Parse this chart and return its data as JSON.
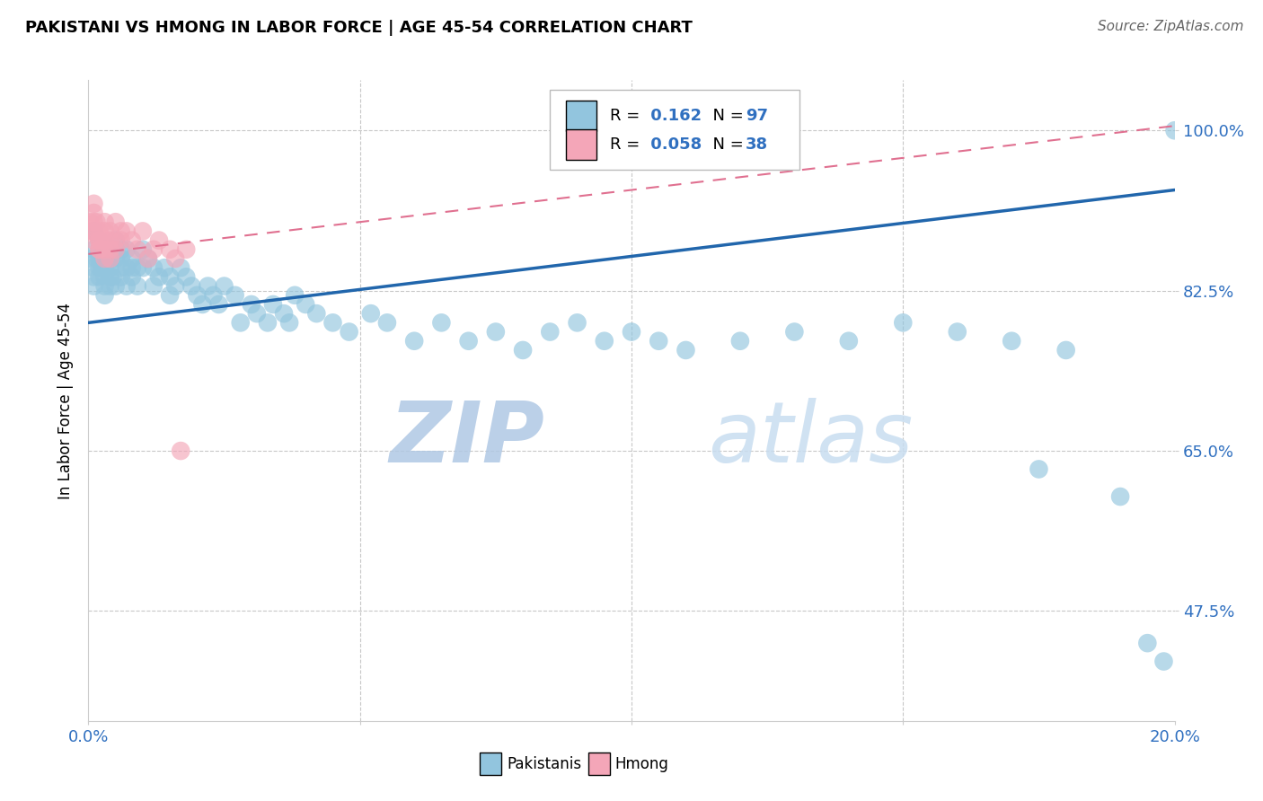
{
  "title": "PAKISTANI VS HMONG IN LABOR FORCE | AGE 45-54 CORRELATION CHART",
  "source": "Source: ZipAtlas.com",
  "ylabel": "In Labor Force | Age 45-54",
  "xlim": [
    0.0,
    0.2
  ],
  "ylim": [
    0.355,
    1.055
  ],
  "yticks": [
    0.475,
    0.65,
    0.825,
    1.0
  ],
  "yticklabels": [
    "47.5%",
    "65.0%",
    "82.5%",
    "100.0%"
  ],
  "xtick_positions": [
    0.0,
    0.05,
    0.1,
    0.15,
    0.2
  ],
  "xticklabels": [
    "0.0%",
    "",
    "",
    "",
    "20.0%"
  ],
  "pakistani_R": "0.162",
  "pakistani_N": "97",
  "hmong_R": "0.058",
  "hmong_N": "38",
  "blue_color": "#92c5de",
  "pink_color": "#f4a6b8",
  "blue_line_color": "#2166ac",
  "pink_line_color": "#e07090",
  "grid_color": "#c8c8c8",
  "watermark_color": "#c8d8ee",
  "tick_label_color": "#3070c0",
  "blue_trend_x0": 0.0,
  "blue_trend_y0": 0.79,
  "blue_trend_x1": 0.2,
  "blue_trend_y1": 0.935,
  "pink_trend_x0": 0.0,
  "pink_trend_y0": 0.865,
  "pink_trend_x1": 0.2,
  "pink_trend_y1": 1.005,
  "pak_x": [
    0.0005,
    0.001,
    0.001,
    0.001,
    0.001,
    0.001,
    0.0015,
    0.002,
    0.002,
    0.002,
    0.002,
    0.0025,
    0.003,
    0.003,
    0.003,
    0.003,
    0.003,
    0.003,
    0.004,
    0.004,
    0.004,
    0.004,
    0.004,
    0.0045,
    0.005,
    0.005,
    0.005,
    0.005,
    0.006,
    0.006,
    0.006,
    0.006,
    0.007,
    0.007,
    0.007,
    0.008,
    0.008,
    0.008,
    0.009,
    0.009,
    0.01,
    0.01,
    0.011,
    0.012,
    0.012,
    0.013,
    0.014,
    0.015,
    0.015,
    0.016,
    0.017,
    0.018,
    0.019,
    0.02,
    0.021,
    0.022,
    0.023,
    0.024,
    0.025,
    0.027,
    0.028,
    0.03,
    0.031,
    0.033,
    0.034,
    0.036,
    0.037,
    0.038,
    0.04,
    0.042,
    0.045,
    0.048,
    0.052,
    0.055,
    0.06,
    0.065,
    0.07,
    0.075,
    0.08,
    0.085,
    0.09,
    0.095,
    0.1,
    0.105,
    0.11,
    0.12,
    0.13,
    0.14,
    0.15,
    0.16,
    0.17,
    0.175,
    0.18,
    0.19,
    0.195,
    0.198,
    0.2
  ],
  "pak_y": [
    0.86,
    0.89,
    0.87,
    0.85,
    0.84,
    0.83,
    0.86,
    0.88,
    0.86,
    0.85,
    0.84,
    0.85,
    0.87,
    0.86,
    0.85,
    0.84,
    0.83,
    0.82,
    0.87,
    0.86,
    0.85,
    0.84,
    0.83,
    0.84,
    0.88,
    0.87,
    0.86,
    0.83,
    0.87,
    0.86,
    0.85,
    0.84,
    0.87,
    0.85,
    0.83,
    0.86,
    0.85,
    0.84,
    0.85,
    0.83,
    0.87,
    0.85,
    0.86,
    0.85,
    0.83,
    0.84,
    0.85,
    0.84,
    0.82,
    0.83,
    0.85,
    0.84,
    0.83,
    0.82,
    0.81,
    0.83,
    0.82,
    0.81,
    0.83,
    0.82,
    0.79,
    0.81,
    0.8,
    0.79,
    0.81,
    0.8,
    0.79,
    0.82,
    0.81,
    0.8,
    0.79,
    0.78,
    0.8,
    0.79,
    0.77,
    0.79,
    0.77,
    0.78,
    0.76,
    0.78,
    0.79,
    0.77,
    0.78,
    0.77,
    0.76,
    0.77,
    0.78,
    0.77,
    0.79,
    0.78,
    0.77,
    0.63,
    0.76,
    0.6,
    0.44,
    0.42,
    1.0
  ],
  "hmong_x": [
    0.0003,
    0.0005,
    0.001,
    0.001,
    0.001,
    0.001,
    0.001,
    0.0015,
    0.002,
    0.002,
    0.002,
    0.002,
    0.002,
    0.003,
    0.003,
    0.003,
    0.003,
    0.003,
    0.004,
    0.004,
    0.004,
    0.004,
    0.005,
    0.005,
    0.005,
    0.006,
    0.006,
    0.007,
    0.008,
    0.009,
    0.01,
    0.011,
    0.012,
    0.013,
    0.015,
    0.016,
    0.017,
    0.018
  ],
  "hmong_y": [
    0.9,
    0.89,
    0.92,
    0.91,
    0.9,
    0.89,
    0.88,
    0.9,
    0.89,
    0.88,
    0.87,
    0.88,
    0.87,
    0.9,
    0.89,
    0.88,
    0.87,
    0.86,
    0.89,
    0.88,
    0.87,
    0.86,
    0.9,
    0.88,
    0.87,
    0.89,
    0.88,
    0.89,
    0.88,
    0.87,
    0.89,
    0.86,
    0.87,
    0.88,
    0.87,
    0.86,
    0.65,
    0.87
  ]
}
